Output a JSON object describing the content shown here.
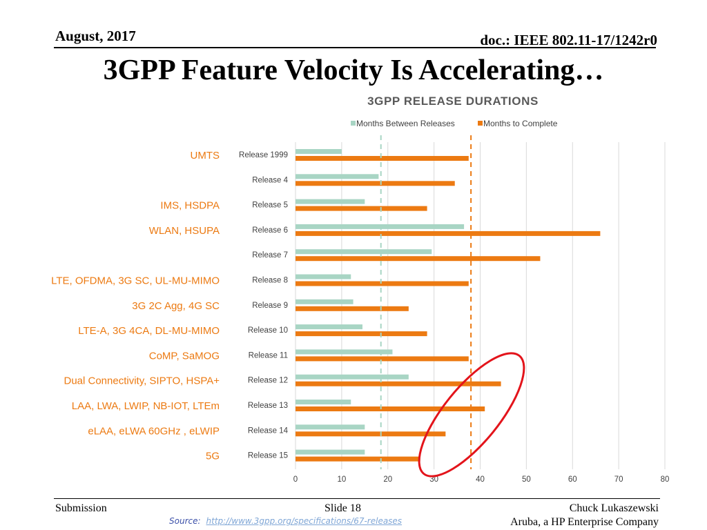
{
  "header": {
    "date": "August, 2017",
    "doc": "doc.: IEEE 802.11-17/1242r0"
  },
  "title": "3GPP Feature Velocity Is Accelerating…",
  "footer": {
    "left": "Submission",
    "center": "Slide 18",
    "right_line1": "Chuck Lukaszewski",
    "right_line2": "Aruba, a HP Enterprise Company",
    "source_label": "Source:",
    "source_link": "http://www.3gpp.org/specifications/67-releases"
  },
  "colors": {
    "between": "#a8d5c4",
    "complete": "#ec7a12",
    "feature_text": "#ec7a12",
    "highlight": "#e3141b"
  },
  "chart_data": {
    "type": "bar",
    "orientation": "horizontal",
    "title": "3GPP RELEASE DURATIONS",
    "categories": [
      "Release 1999",
      "Release 4",
      "Release 5",
      "Release 6",
      "Release 7",
      "Release 8",
      "Release 9",
      "Release 10",
      "Release 11",
      "Release 12",
      "Release 13",
      "Release 14",
      "Release 15"
    ],
    "feature_labels": [
      "UMTS",
      "",
      "IMS, HSDPA",
      "WLAN, HSUPA",
      "",
      "LTE, OFDMA, 3G SC, UL-MU-MIMO",
      "3G 2C Agg, 4G SC",
      "LTE-A, 3G 4CA, DL-MU-MIMO",
      "CoMP, SaMOG",
      "Dual Connectivity, SIPTO, HSPA+",
      "LAA, LWA, LWIP, NB-IOT, LTEm",
      "eLAA, eLWA 60GHz , eLWIP",
      "5G"
    ],
    "series": [
      {
        "name": "Months Between Releases",
        "values": [
          10,
          18,
          15,
          36.5,
          29.5,
          12,
          12.5,
          14.5,
          21,
          24.5,
          12,
          15,
          15
        ]
      },
      {
        "name": "Months to Complete",
        "values": [
          37.5,
          34.5,
          28.5,
          66,
          53,
          37.5,
          24.5,
          28.5,
          37.5,
          44.5,
          41,
          32.5,
          27
        ]
      }
    ],
    "reference_lines": [
      {
        "series": "Months Between Releases",
        "value": 18.5
      },
      {
        "series": "Months to Complete",
        "value": 38
      }
    ],
    "xlim": [
      0,
      80
    ],
    "xticks": [
      0,
      10,
      20,
      30,
      40,
      50,
      60,
      70,
      80
    ],
    "grid": true,
    "legend": "top"
  }
}
